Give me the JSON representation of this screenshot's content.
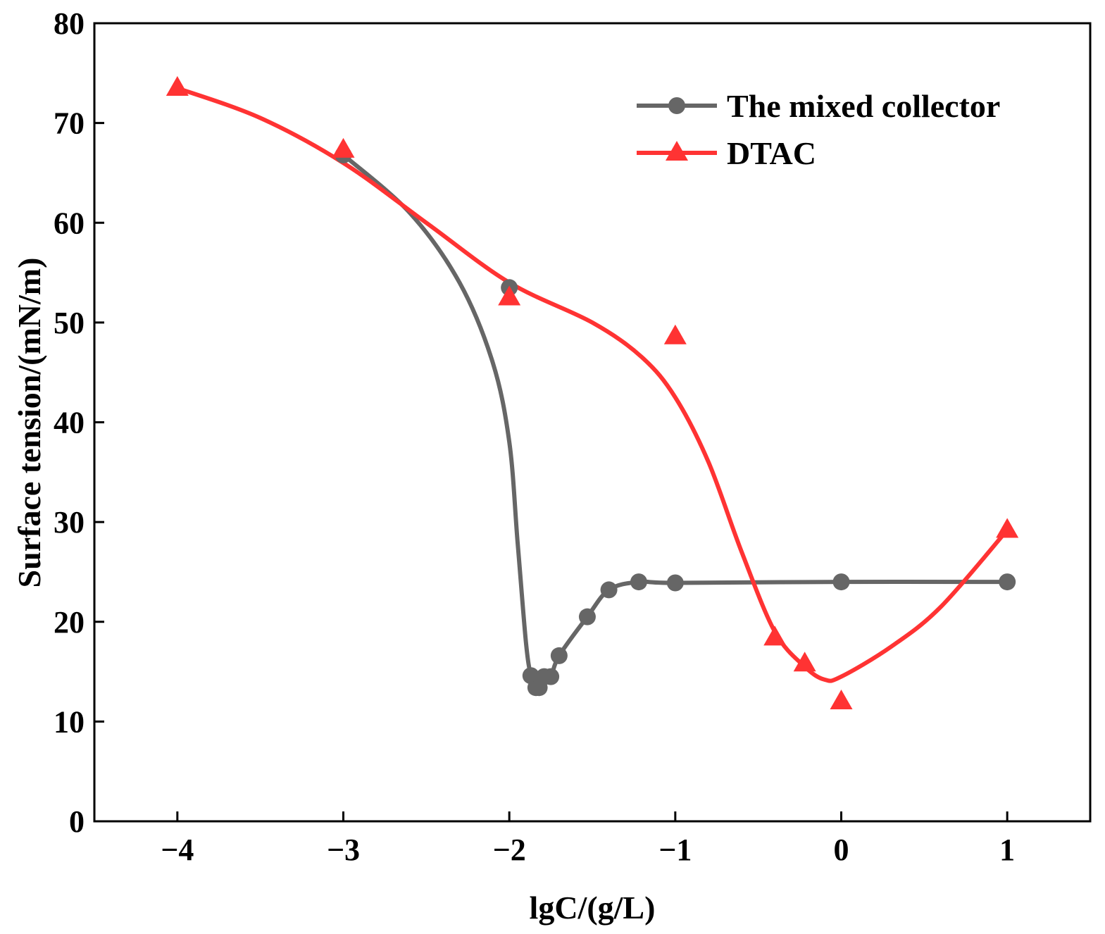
{
  "chart_data": {
    "type": "scatter",
    "title": "",
    "xlabel": "lgC/(g/L)",
    "ylabel": "Surface tension/(mN/m)",
    "xlim": [
      -4.5,
      1.5
    ],
    "ylim": [
      0,
      80
    ],
    "xticks": [
      -4,
      -3,
      -2,
      -1,
      0,
      1
    ],
    "xtick_labels": [
      "−4",
      "−3",
      "−2",
      "−1",
      "0",
      "1"
    ],
    "yticks": [
      0,
      10,
      20,
      30,
      40,
      50,
      60,
      70,
      80
    ],
    "ytick_labels": [
      "0",
      "10",
      "20",
      "30",
      "40",
      "50",
      "60",
      "70",
      "80"
    ],
    "grid": false,
    "legend_position": "top-right",
    "series": [
      {
        "name": "The mixed collector",
        "color": "#666666",
        "marker": "circle",
        "points": [
          [
            -3,
            66.8
          ],
          [
            -2,
            53.5
          ],
          [
            -1.87,
            14.6
          ],
          [
            -1.84,
            13.4
          ],
          [
            -1.82,
            13.4
          ],
          [
            -1.79,
            14.5
          ],
          [
            -1.75,
            14.5
          ],
          [
            -1.7,
            16.6
          ],
          [
            -1.53,
            20.5
          ],
          [
            -1.4,
            23.2
          ],
          [
            -1.22,
            24.0
          ],
          [
            -1,
            23.9
          ],
          [
            0,
            24.0
          ],
          [
            1,
            24.0
          ]
        ],
        "curve": [
          [
            -3,
            66.8
          ],
          [
            -2.6,
            61.0
          ],
          [
            -2.3,
            54.0
          ],
          [
            -2.1,
            46.0
          ],
          [
            -2.0,
            38.0
          ],
          [
            -1.95,
            28.0
          ],
          [
            -1.9,
            18.0
          ],
          [
            -1.87,
            14.6
          ],
          [
            -1.84,
            13.4
          ],
          [
            -1.8,
            13.9
          ],
          [
            -1.75,
            14.5
          ],
          [
            -1.7,
            16.6
          ],
          [
            -1.53,
            20.5
          ],
          [
            -1.4,
            23.2
          ],
          [
            -1.22,
            24.0
          ],
          [
            -1,
            23.9
          ],
          [
            0,
            24.0
          ],
          [
            1,
            24.0
          ]
        ]
      },
      {
        "name": "DTAC",
        "color": "#ff3333",
        "marker": "triangle",
        "points": [
          [
            -4,
            73.5
          ],
          [
            -3,
            67.3
          ],
          [
            -2,
            52.5
          ],
          [
            -1,
            48.6
          ],
          [
            -0.4,
            18.4
          ],
          [
            -0.22,
            15.8
          ],
          [
            0,
            12.0
          ],
          [
            1,
            29.2
          ]
        ],
        "curve": [
          [
            -4,
            73.5
          ],
          [
            -3.5,
            70.5
          ],
          [
            -3,
            66.0
          ],
          [
            -2.5,
            60.0
          ],
          [
            -2,
            54.0
          ],
          [
            -1.5,
            50.0
          ],
          [
            -1.2,
            46.5
          ],
          [
            -1,
            42.5
          ],
          [
            -0.8,
            36.0
          ],
          [
            -0.6,
            27.0
          ],
          [
            -0.4,
            19.0
          ],
          [
            -0.22,
            15.5
          ],
          [
            -0.1,
            14.2
          ],
          [
            0,
            14.5
          ],
          [
            0.3,
            17.5
          ],
          [
            0.6,
            21.5
          ],
          [
            1,
            29.2
          ]
        ]
      }
    ]
  }
}
